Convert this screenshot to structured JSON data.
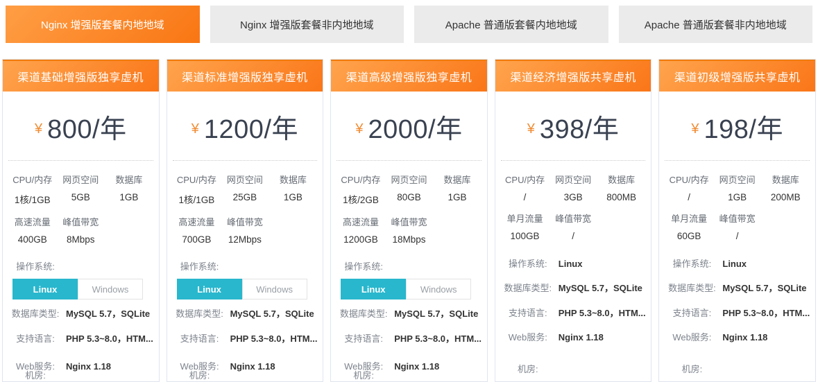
{
  "tabs": [
    {
      "label": "Nginx 增强版套餐内地地域",
      "active": true
    },
    {
      "label": "Nginx 增强版套餐非内地地域",
      "active": false
    },
    {
      "label": "Apache 普通版套餐内地地域",
      "active": false
    },
    {
      "label": "Apache 普通版套餐非内地地域",
      "active": false
    }
  ],
  "pricing": {
    "currency_symbol": "¥",
    "os_label": "操作系统:",
    "os_options": {
      "linux": "Linux",
      "windows": "Windows"
    },
    "cards": [
      {
        "title": "渠道基础增强版独享虚机",
        "price": "800/年",
        "specs": {
          "row1": [
            {
              "label": "CPU/内存",
              "value": "1核/1GB"
            },
            {
              "label": "网页空间",
              "value": "5GB"
            },
            {
              "label": "数据库",
              "value": "1GB"
            }
          ],
          "row2": [
            {
              "label": "高速流量",
              "value": "400GB"
            },
            {
              "label": "峰值带宽",
              "value": "8Mbps"
            }
          ]
        },
        "os_selected": "Linux",
        "details": [
          {
            "label": "数据库类型:",
            "value": "MySQL 5.7，SQLite"
          },
          {
            "label": "支持语言:",
            "value": "PHP 5.3~8.0，HTM..."
          },
          {
            "label": "Web服务:",
            "value": "Nginx 1.18"
          },
          {
            "label": "机房:",
            "value": ""
          }
        ]
      },
      {
        "title": "渠道标准增强版独享虚机",
        "price": "1200/年",
        "specs": {
          "row1": [
            {
              "label": "CPU/内存",
              "value": "1核/1GB"
            },
            {
              "label": "网页空间",
              "value": "25GB"
            },
            {
              "label": "数据库",
              "value": "1GB"
            }
          ],
          "row2": [
            {
              "label": "高速流量",
              "value": "700GB"
            },
            {
              "label": "峰值带宽",
              "value": "12Mbps"
            }
          ]
        },
        "os_selected": "Linux",
        "details": [
          {
            "label": "数据库类型:",
            "value": "MySQL 5.7，SQLite"
          },
          {
            "label": "支持语言:",
            "value": "PHP 5.3~8.0，HTM..."
          },
          {
            "label": "Web服务:",
            "value": "Nginx 1.18"
          },
          {
            "label": "机房:",
            "value": ""
          }
        ]
      },
      {
        "title": "渠道高级增强版独享虚机",
        "price": "2000/年",
        "specs": {
          "row1": [
            {
              "label": "CPU/内存",
              "value": "1核/2GB"
            },
            {
              "label": "网页空间",
              "value": "80GB"
            },
            {
              "label": "数据库",
              "value": "1GB"
            }
          ],
          "row2": [
            {
              "label": "高速流量",
              "value": "1200GB"
            },
            {
              "label": "峰值带宽",
              "value": "18Mbps"
            }
          ]
        },
        "os_selected": "Linux",
        "details": [
          {
            "label": "数据库类型:",
            "value": "MySQL 5.7，SQLite"
          },
          {
            "label": "支持语言:",
            "value": "PHP 5.3~8.0，HTM..."
          },
          {
            "label": "Web服务:",
            "value": "Nginx 1.18"
          },
          {
            "label": "机房:",
            "value": ""
          }
        ]
      },
      {
        "title": "渠道经济增强版共享虚机",
        "price": "398/年",
        "specs": {
          "row1": [
            {
              "label": "CPU/内存",
              "value": "/"
            },
            {
              "label": "网页空间",
              "value": "3GB"
            },
            {
              "label": "数据库",
              "value": "800MB"
            }
          ],
          "row2": [
            {
              "label": "单月流量",
              "value": "100GB"
            },
            {
              "label": "峰值带宽",
              "value": "/"
            }
          ]
        },
        "os_value": "Linux",
        "details": [
          {
            "label": "数据库类型:",
            "value": "MySQL 5.7，SQLite"
          },
          {
            "label": "支持语言:",
            "value": "PHP 5.3~8.0，HTM..."
          },
          {
            "label": "Web服务:",
            "value": "Nginx 1.18"
          },
          {
            "label": "机房:",
            "value": ""
          }
        ]
      },
      {
        "title": "渠道初级增强版共享虚机",
        "price": "198/年",
        "specs": {
          "row1": [
            {
              "label": "CPU/内存",
              "value": "/"
            },
            {
              "label": "网页空间",
              "value": "1GB"
            },
            {
              "label": "数据库",
              "value": "200MB"
            }
          ],
          "row2": [
            {
              "label": "单月流量",
              "value": "60GB"
            },
            {
              "label": "峰值带宽",
              "value": "/"
            }
          ]
        },
        "os_value": "Linux",
        "details": [
          {
            "label": "数据库类型:",
            "value": "MySQL 5.7，SQLite"
          },
          {
            "label": "支持语言:",
            "value": "PHP 5.3~8.0，HTM..."
          },
          {
            "label": "Web服务:",
            "value": "Nginx 1.18"
          },
          {
            "label": "机房:",
            "value": ""
          }
        ]
      }
    ]
  },
  "colors": {
    "accent_orange_start": "#ffa44d",
    "accent_orange_end": "#fa7618",
    "tab_inactive_bg": "#ebebeb",
    "os_active_cyan": "#29b7cd",
    "price_text": "#3a4251",
    "yen_orange": "#f08d35",
    "card_border": "#dfe5ee"
  }
}
